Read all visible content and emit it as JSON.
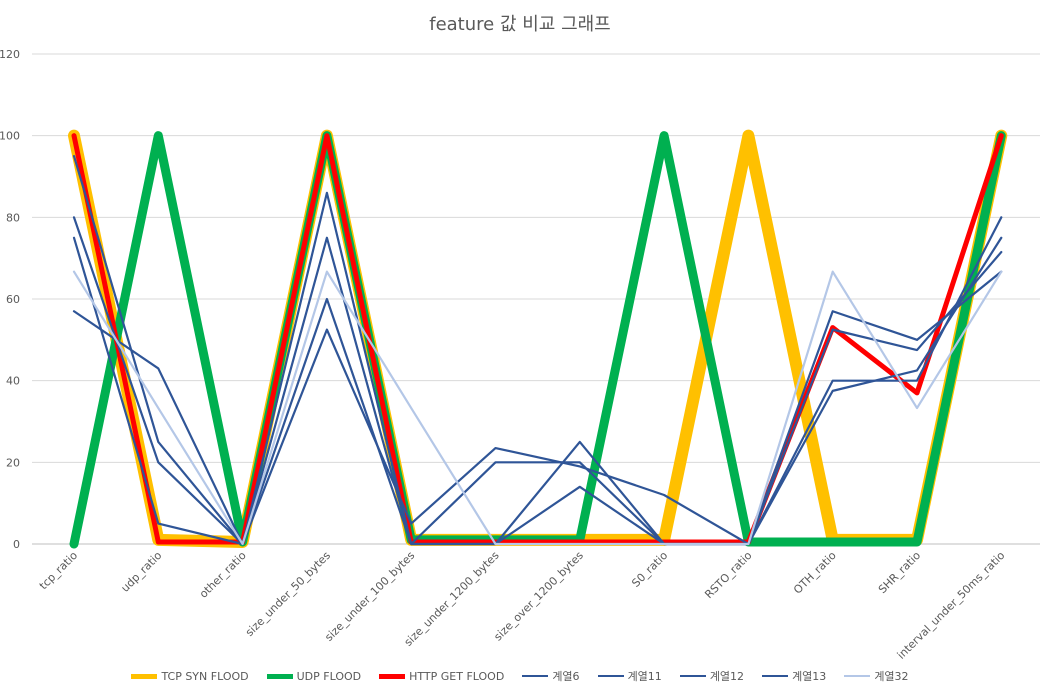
{
  "chart_data": {
    "type": "line",
    "title": "feature 값 비교 그래프",
    "xlabel": "",
    "ylabel": "",
    "ylim": [
      0,
      120
    ],
    "yticks": [
      0,
      20,
      40,
      60,
      80,
      100,
      120
    ],
    "grid": true,
    "legend_position": "bottom",
    "categories": [
      "tcp_ratio",
      "udp_ratio",
      "other_ratio",
      "size_under_50_bytes",
      "size_under_100_bytes",
      "size_under_1200_bytes",
      "size_over_1200_bytes",
      "S0_ratio",
      "RSTO_ratio",
      "OTH_ratio",
      "SHR_ratio",
      "interval_under_50ms_ratio"
    ],
    "series": [
      {
        "name": "TCP SYN FLOOD",
        "color": "#FFC000",
        "values": [
          100,
          1,
          0.5,
          100,
          1,
          1,
          1,
          1,
          100,
          1,
          1,
          100
        ]
      },
      {
        "name": "UDP FLOOD",
        "color": "#00B050",
        "values": [
          0,
          100,
          0.5,
          100,
          1,
          1,
          1,
          100,
          0.5,
          0.5,
          0.5,
          100
        ]
      },
      {
        "name": "HTTP GET FLOOD",
        "color": "#FF0000",
        "values": [
          100,
          0.5,
          0.5,
          100,
          0.5,
          0.5,
          0.5,
          0.5,
          0.5,
          53,
          37,
          100
        ]
      },
      {
        "name": "계열6",
        "color": "#2F5597",
        "values": [
          57,
          43,
          0,
          52.5,
          5,
          23.5,
          19,
          12,
          0,
          57,
          50,
          66.7
        ]
      },
      {
        "name": "계열11",
        "color": "#2F5597",
        "values": [
          75,
          5,
          0,
          86,
          0,
          20,
          20,
          0,
          0,
          40,
          40,
          80
        ]
      },
      {
        "name": "계열12",
        "color": "#2F5597",
        "values": [
          80,
          20,
          0,
          60,
          0,
          0,
          14,
          0,
          0,
          52.5,
          47.5,
          71.5
        ]
      },
      {
        "name": "계열13",
        "color": "#2F5597",
        "values": [
          95,
          25,
          0,
          75,
          0,
          0,
          25,
          0,
          0,
          37.5,
          42.5,
          75
        ]
      },
      {
        "name": "계열32",
        "color": "#B4C7E7",
        "values": [
          66.7,
          33.3,
          0,
          66.7,
          33.3,
          0,
          0,
          0,
          0,
          66.7,
          33.3,
          66.7
        ]
      }
    ]
  }
}
